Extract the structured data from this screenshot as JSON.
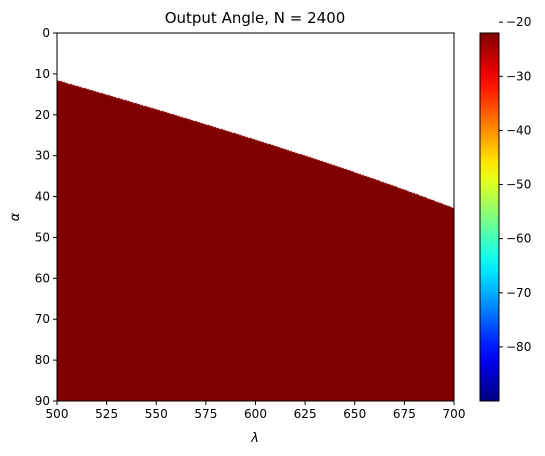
{
  "chart_data": {
    "type": "heatmap",
    "title": "Output Angle, N = 2400",
    "xlabel": "λ",
    "ylabel": "α",
    "xlim": [
      500,
      700
    ],
    "ylim": [
      90,
      0
    ],
    "y_axis_inverted": true,
    "x_ticks": [
      "500",
      "525",
      "550",
      "575",
      "600",
      "625",
      "650",
      "675",
      "700"
    ],
    "y_ticks": [
      "0",
      "10",
      "20",
      "30",
      "40",
      "50",
      "60",
      "70",
      "80",
      "90"
    ],
    "colormap": "jet",
    "colorbar": {
      "range": [
        -90,
        -22
      ],
      "ticks": [
        "−20",
        "−30",
        "−40",
        "−50",
        "−60",
        "−70",
        "−80"
      ],
      "tick_values": [
        -20,
        -30,
        -40,
        -50,
        -60,
        -70,
        -80
      ]
    },
    "grating_lines_per_mm": 2400,
    "value_definition": "output angle β = arcsin(N·λ·1e-6 − sin α) in degrees; blank where |N·λ·1e-6 − sin α| > 1",
    "grid": false,
    "legend": "colorbar-right"
  }
}
